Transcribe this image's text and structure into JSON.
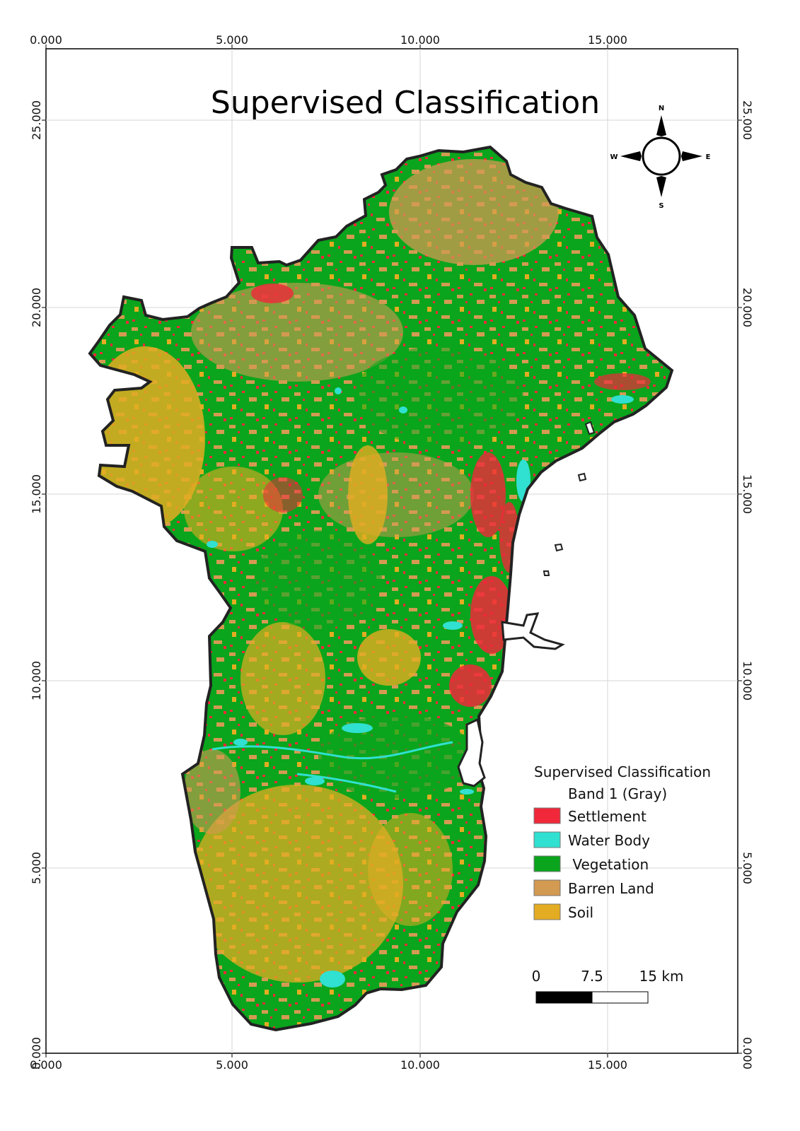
{
  "title": "Supervised Classification",
  "x_axis": {
    "top_ticks": [
      "0.000",
      "5.000",
      "10.000",
      "15.000"
    ],
    "bottom_ticks": [
      "0.000",
      "5.000",
      "10.000",
      "15.000"
    ]
  },
  "y_axis": {
    "left_ticks": [
      "25.000",
      "20.000",
      "15.000",
      "10.000",
      "5.000",
      "0.000"
    ],
    "right_ticks": [
      "25.000",
      "20.000",
      "15.000",
      "10.000",
      "5.000",
      "0.000"
    ]
  },
  "compass": {
    "n": "N",
    "s": "S",
    "e": "E",
    "w": "W"
  },
  "legend": {
    "title": "Supervised Classification",
    "subtitle": "Band 1 (Gray)",
    "items": [
      {
        "label": "Settlement",
        "color": "#f0283a"
      },
      {
        "label": "Water Body",
        "color": "#30e0d0"
      },
      {
        "label": " Vegetation",
        "color": "#0aa51c"
      },
      {
        "label": "Barren Land",
        "color": "#d39a52"
      },
      {
        "label": "Soil",
        "color": "#e3ac22"
      }
    ]
  },
  "scale_bar": {
    "labels": [
      "0",
      "7.5",
      "15 km"
    ]
  }
}
